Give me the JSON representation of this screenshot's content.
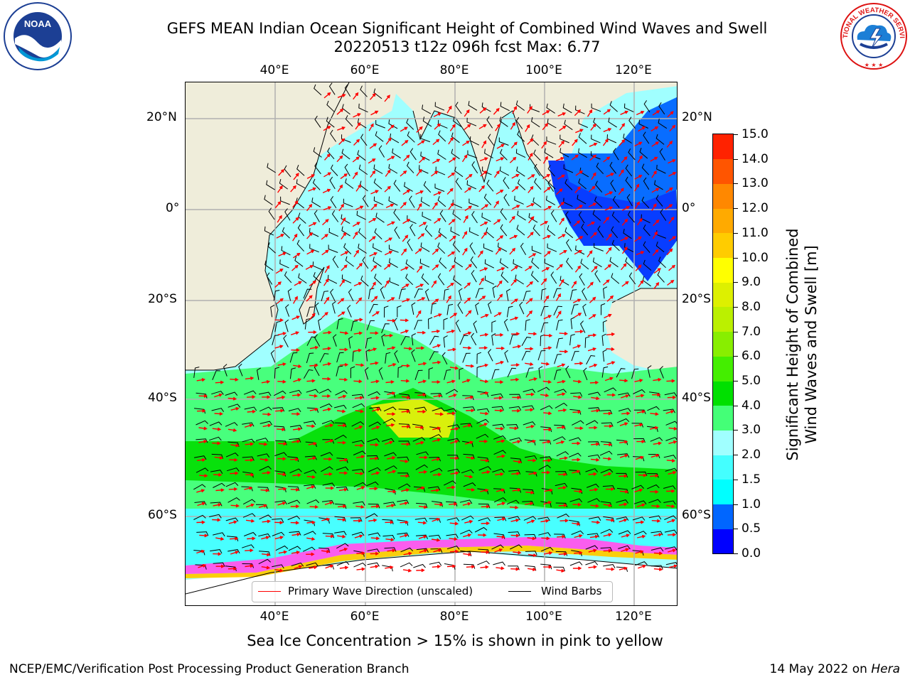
{
  "title": {
    "line1": "GEFS MEAN Indian Ocean Significant Height of Combined Wind Waves and Swell",
    "line2": "20220513 t12z 096h fcst   Max: 6.77"
  },
  "map": {
    "lon_labels": [
      "40°E",
      "60°E",
      "80°E",
      "100°E",
      "120°E"
    ],
    "lat_labels": [
      "20°N",
      "0°",
      "20°S",
      "40°S",
      "60°S"
    ],
    "colors": {
      "land": "#efedda",
      "ice": "#ffffff",
      "grid": "#b0b0b0",
      "wave_arrow": "#ff0000",
      "wind_barb": "#000000"
    }
  },
  "colorbar": {
    "title": "Significant Height of Combined Wind Waves and Swell [m]",
    "title_line1": "Significant Height of Combined",
    "title_line2": "Wind Waves and Swell [m]",
    "ticks": [
      "15.0",
      "14.0",
      "13.0",
      "12.0",
      "11.0",
      "10.0",
      "9.0",
      "8.0",
      "7.0",
      "6.0",
      "5.0",
      "4.0",
      "3.0",
      "2.0",
      "1.5",
      "1.0",
      "0.5",
      "0.0"
    ],
    "colors_bottom_to_top": [
      "#0000ff",
      "#0066ff",
      "#00ffff",
      "#44ffff",
      "#a0ffff",
      "#44ff77",
      "#00e000",
      "#44ee00",
      "#88ee00",
      "#bbf000",
      "#ddf000",
      "#ffff00",
      "#ffcc00",
      "#ffaa00",
      "#ff8800",
      "#ff5500",
      "#ff2200"
    ]
  },
  "legend": {
    "wave_label": "Primary Wave Direction (unscaled)",
    "wind_label": "Wind Barbs"
  },
  "caption": "Sea Ice Concentration > 15% is shown in pink to yellow",
  "footer": {
    "left": "NCEP/EMC/Verification Post Processing Product Generation Branch",
    "date": "14 May 2022 on ",
    "host": "Hera"
  },
  "logos": {
    "noaa_text": "NOAA",
    "nws_text": "NATIONAL WEATHER SERVICE"
  }
}
